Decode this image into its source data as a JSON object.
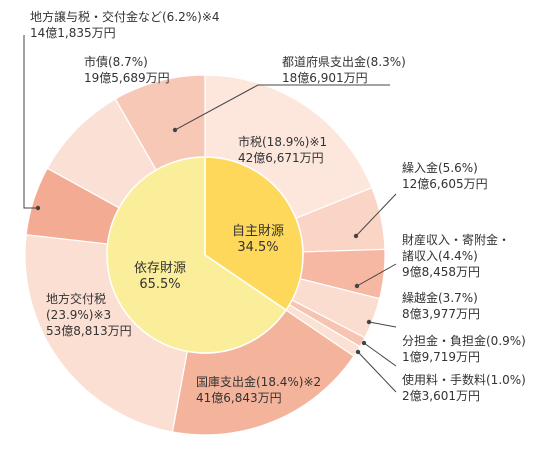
{
  "chart_data": {
    "type": "pie",
    "inner_ring": [
      {
        "name": "自主財源",
        "percent_text": "34.5%",
        "value": 34.5,
        "color": "#fdd85a"
      },
      {
        "name": "依存財源",
        "percent_text": "65.5%",
        "value": 65.5,
        "color": "#fbee9a"
      }
    ],
    "outer_ring": [
      {
        "name": "市税",
        "value": 18.9,
        "line1": "市税(18.9%)※1",
        "line2": "42億6,671万円",
        "color": "#fde7dd"
      },
      {
        "name": "繰入金",
        "value": 5.6,
        "line1": "繰入金(5.6%)",
        "line2": "12億6,605万円",
        "color": "#fad5c5"
      },
      {
        "name": "財産収入・寄附金・諸収入",
        "value": 4.4,
        "line1": "財産収入・寄附金・",
        "line2": "諸収入(4.4%)",
        "line3": "9億8,458万円",
        "color": "#f6b8a2"
      },
      {
        "name": "繰越金",
        "value": 3.7,
        "line1": "繰越金(3.7%)",
        "line2": "8億3,977万円",
        "color": "#fbddd0"
      },
      {
        "name": "分担金・負担金",
        "value": 0.9,
        "line1": "分担金・負担金(0.9%)",
        "line2": "1億9,719万円",
        "color": "#f7c4b1"
      },
      {
        "name": "使用料・手数料",
        "value": 1.0,
        "line1": "使用料・手数料(1.0%)",
        "line2": "2億3,601万円",
        "color": "#fbe0d4"
      },
      {
        "name": "国庫支出金",
        "value": 18.4,
        "line1": "国庫支出金(18.4%)※2",
        "line2": "41億6,843万円",
        "color": "#f4b49c"
      },
      {
        "name": "地方交付税",
        "value": 23.9,
        "line1": "地方交付税",
        "line2": "(23.9%)※3",
        "line3": "53億8,813万円",
        "color": "#fbdfd3"
      },
      {
        "name": "地方譲与税・交付金など",
        "value": 6.2,
        "line1": "地方譲与税・交付金など(6.2%)※4",
        "line2": "14億1,835万円",
        "color": "#f3ab93"
      },
      {
        "name": "市債",
        "value": 8.7,
        "line1": "市債(8.7%)",
        "line2": "19億5,689万円",
        "color": "#fbe1d5"
      },
      {
        "name": "都道府県支出金",
        "value": 8.3,
        "line1": "都道府県支出金(8.3%)",
        "line2": "18億6,901万円",
        "color": "#f8c8b7"
      }
    ]
  }
}
